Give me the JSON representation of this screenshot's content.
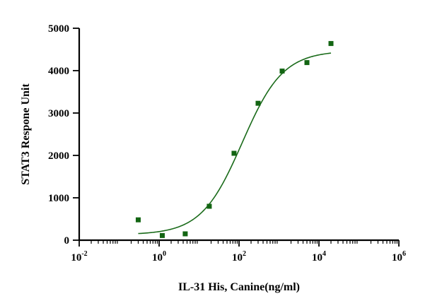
{
  "chart_data": {
    "type": "scatter",
    "title": "",
    "xlabel": "IL-31 His, Canine(ng/ml)",
    "ylabel": "STAT3 Respone Unit",
    "x_scale": "log10",
    "xlim": [
      0.01,
      1000000
    ],
    "ylim": [
      0,
      5000
    ],
    "x_ticks": [
      {
        "value": 0.01,
        "base": "10",
        "exp": "-2"
      },
      {
        "value": 1,
        "base": "10",
        "exp": "0"
      },
      {
        "value": 100,
        "base": "10",
        "exp": "2"
      },
      {
        "value": 10000,
        "base": "10",
        "exp": "4"
      },
      {
        "value": 1000000,
        "base": "10",
        "exp": "6"
      }
    ],
    "y_ticks": [
      {
        "value": 0,
        "label": "0"
      },
      {
        "value": 1000,
        "label": "1000"
      },
      {
        "value": 2000,
        "label": "2000"
      },
      {
        "value": 3000,
        "label": "3000"
      },
      {
        "value": 4000,
        "label": "4000"
      },
      {
        "value": 5000,
        "label": "5000"
      }
    ],
    "grid": false,
    "series": [
      {
        "marker": "square",
        "color": "#136513",
        "points": [
          {
            "x": 0.3,
            "y": 480
          },
          {
            "x": 1.2,
            "y": 110
          },
          {
            "x": 4.5,
            "y": 150
          },
          {
            "x": 18,
            "y": 800
          },
          {
            "x": 75,
            "y": 2050
          },
          {
            "x": 300,
            "y": 3230
          },
          {
            "x": 1200,
            "y": 3990
          },
          {
            "x": 5000,
            "y": 4190
          },
          {
            "x": 20000,
            "y": 4640
          }
        ]
      }
    ],
    "fit": {
      "type": "four-parameter-logistic",
      "color": "#1a6b1a",
      "bottom": 130,
      "top": 4470,
      "ec50": 120,
      "hill": 0.85,
      "x_range": [
        0.3,
        20000
      ]
    }
  }
}
